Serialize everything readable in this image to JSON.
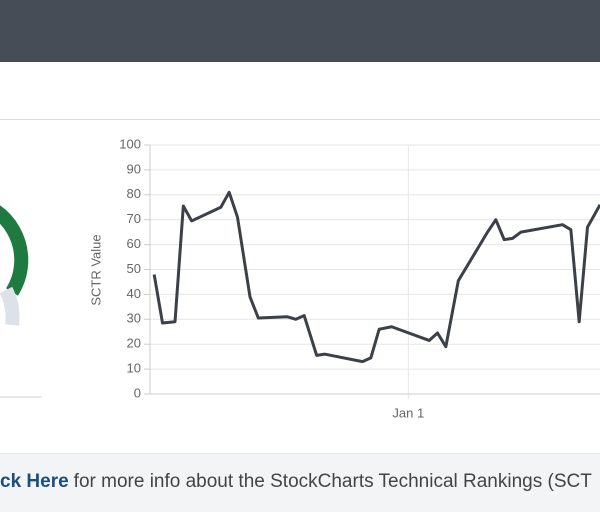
{
  "chart_data": {
    "type": "line",
    "y_label": "SCTR Value",
    "x": [
      -61,
      -59,
      -56,
      -54,
      -52,
      -45,
      -43,
      -41,
      -38,
      -36,
      -29,
      -27,
      -25,
      -22,
      -20,
      -11,
      -9,
      -7,
      -4,
      5,
      7,
      9,
      12,
      19,
      21,
      23,
      25,
      27,
      37,
      39,
      41,
      43,
      46
    ],
    "series": [
      {
        "color": "#3c4048",
        "values": [
          48,
          28.5,
          29,
          75.5,
          69.5,
          75,
          81,
          71,
          39,
          30.5,
          31,
          30,
          31.5,
          15.5,
          16,
          13,
          14.5,
          26,
          27,
          21.5,
          24.5,
          19,
          45.5,
          65,
          70,
          62,
          62.5,
          65,
          68,
          66,
          29,
          67,
          76
        ]
      }
    ],
    "xlim": [
      -62,
      46
    ],
    "xticks": [
      {
        "value": 0,
        "label": "Jan 1"
      }
    ],
    "ylim": [
      0,
      100
    ],
    "yticks": [
      0,
      10,
      20,
      30,
      40,
      50,
      60,
      70,
      80,
      90,
      100
    ],
    "grid": true
  },
  "footer": {
    "link": "ck Here",
    "text": "for more info about the StockCharts Technical Rankings (SCT"
  }
}
